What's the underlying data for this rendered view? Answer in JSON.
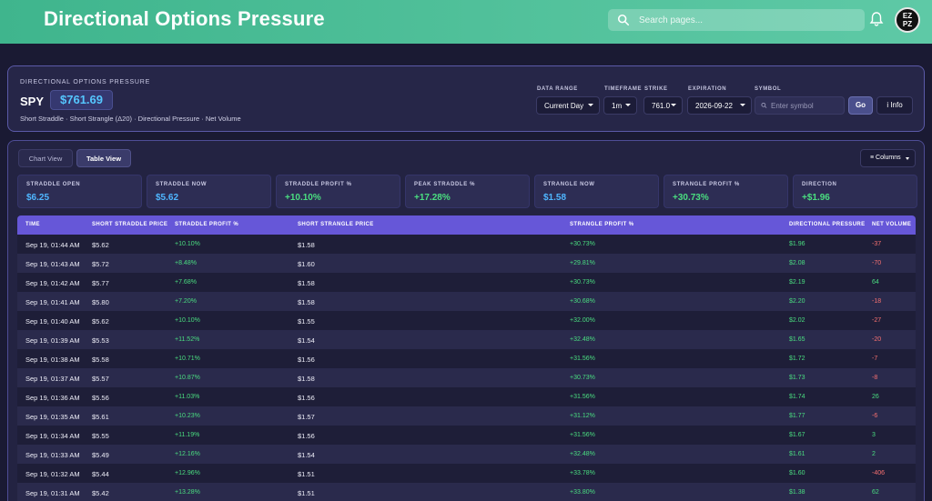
{
  "header": {
    "title": "Directional Options Pressure",
    "search_placeholder": "Search pages...",
    "avatar_text_top": "EZ",
    "avatar_text_bottom": "PZ"
  },
  "panel": {
    "eyebrow": "DIRECTIONAL OPTIONS PRESSURE",
    "symbol": "SPY",
    "price": "$761.69",
    "subtitle": "Short Straddle · Short Strangle (Δ20) · Directional Pressure · Net Volume",
    "controls": {
      "data_range_label": "DATA RANGE",
      "data_range_value": "Current Day",
      "timeframe_label": "TIMEFRAME",
      "timeframe_value": "1m",
      "strike_label": "STRIKE",
      "strike_value": "761.0",
      "expiration_label": "EXPIRATION",
      "expiration_value": "2026-09-22",
      "symbol_label": "SYMBOL",
      "symbol_placeholder": "Enter symbol",
      "go_label": "Go",
      "info_label": "i Info"
    }
  },
  "tabs": {
    "chart": "Chart View",
    "table": "Table View",
    "active": "table"
  },
  "columns_label": "≡ Columns",
  "stats": [
    {
      "label": "STRADDLE OPEN",
      "value": "$6.25",
      "tone": "blue"
    },
    {
      "label": "STRADDLE NOW",
      "value": "$5.62",
      "tone": "blue"
    },
    {
      "label": "STRADDLE PROFIT %",
      "value": "+10.10%",
      "tone": "green"
    },
    {
      "label": "PEAK STRADDLE %",
      "value": "+17.28%",
      "tone": "green"
    },
    {
      "label": "STRANGLE NOW",
      "value": "$1.58",
      "tone": "blue"
    },
    {
      "label": "STRANGLE PROFIT %",
      "value": "+30.73%",
      "tone": "green"
    },
    {
      "label": "DIRECTION",
      "value": "+$1.96",
      "tone": "green"
    }
  ],
  "table": {
    "headers": [
      "TIME",
      "SHORT STRADDLE PRICE",
      "STRADDLE PROFIT %",
      "SHORT STRANGLE PRICE",
      "STRANGLE PROFIT %",
      "DIRECTIONAL PRESSURE",
      "NET VOLUME"
    ],
    "rows": [
      [
        "Sep 19, 01:44 AM",
        "$5.62",
        "+10.10%",
        "$1.58",
        "+30.73%",
        "$1.96",
        "-37"
      ],
      [
        "Sep 19, 01:43 AM",
        "$5.72",
        "+8.48%",
        "$1.60",
        "+29.81%",
        "$2.08",
        "-70"
      ],
      [
        "Sep 19, 01:42 AM",
        "$5.77",
        "+7.68%",
        "$1.58",
        "+30.73%",
        "$2.19",
        "64"
      ],
      [
        "Sep 19, 01:41 AM",
        "$5.80",
        "+7.20%",
        "$1.58",
        "+30.68%",
        "$2.20",
        "-18"
      ],
      [
        "Sep 19, 01:40 AM",
        "$5.62",
        "+10.10%",
        "$1.55",
        "+32.00%",
        "$2.02",
        "-27"
      ],
      [
        "Sep 19, 01:39 AM",
        "$5.53",
        "+11.52%",
        "$1.54",
        "+32.48%",
        "$1.65",
        "-20"
      ],
      [
        "Sep 19, 01:38 AM",
        "$5.58",
        "+10.71%",
        "$1.56",
        "+31.56%",
        "$1.72",
        "-7"
      ],
      [
        "Sep 19, 01:37 AM",
        "$5.57",
        "+10.87%",
        "$1.58",
        "+30.73%",
        "$1.73",
        "-8"
      ],
      [
        "Sep 19, 01:36 AM",
        "$5.56",
        "+11.03%",
        "$1.56",
        "+31.56%",
        "$1.74",
        "26"
      ],
      [
        "Sep 19, 01:35 AM",
        "$5.61",
        "+10.23%",
        "$1.57",
        "+31.12%",
        "$1.77",
        "-6"
      ],
      [
        "Sep 19, 01:34 AM",
        "$5.55",
        "+11.19%",
        "$1.56",
        "+31.56%",
        "$1.67",
        "3"
      ],
      [
        "Sep 19, 01:33 AM",
        "$5.49",
        "+12.16%",
        "$1.54",
        "+32.48%",
        "$1.61",
        "2"
      ],
      [
        "Sep 19, 01:32 AM",
        "$5.44",
        "+12.96%",
        "$1.51",
        "+33.78%",
        "$1.60",
        "-406"
      ],
      [
        "Sep 19, 01:31 AM",
        "$5.42",
        "+13.28%",
        "$1.51",
        "+33.80%",
        "$1.38",
        "62"
      ]
    ]
  },
  "colors": {
    "header_green": "#53c29c",
    "table_header": "#6657d8",
    "positive": "#4ade80",
    "negative": "#f87171",
    "accent_blue": "#4fb6ff"
  }
}
